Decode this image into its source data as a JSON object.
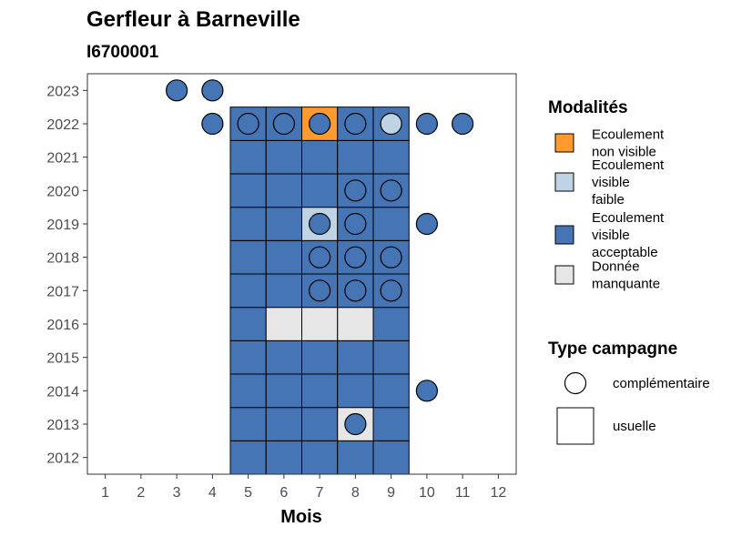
{
  "chart_data": {
    "type": "heatmap",
    "title": "Gerfleur à Barneville",
    "subtitle": "I6700001",
    "xlabel": "Mois",
    "ylabel": "",
    "x_ticks": [
      "1",
      "2",
      "3",
      "4",
      "5",
      "6",
      "7",
      "8",
      "9",
      "10",
      "11",
      "12"
    ],
    "y_ticks": [
      "2012",
      "2013",
      "2014",
      "2015",
      "2016",
      "2017",
      "2018",
      "2019",
      "2020",
      "2021",
      "2022",
      "2023"
    ],
    "xlim": [
      0.5,
      12.5
    ],
    "ylim": [
      2011.5,
      2023.5
    ],
    "grid": false,
    "legend_position": "right",
    "modalites": {
      "title": "Modalités",
      "items": [
        {
          "key": "nv",
          "label": [
            "Ecoulement",
            "non visible"
          ],
          "color": "#FE9A2E"
        },
        {
          "key": "vf",
          "label": [
            "Ecoulement",
            "visible",
            "faible"
          ],
          "color": "#BED3E3"
        },
        {
          "key": "va",
          "label": [
            "Ecoulement",
            "visible",
            "acceptable"
          ],
          "color": "#4575B4"
        },
        {
          "key": "dm",
          "label": [
            "Donnée",
            "manquante"
          ],
          "color": "#E6E6E6"
        }
      ]
    },
    "campagne": {
      "title": "Type campagne",
      "items": [
        {
          "key": "complementaire",
          "label": "complémentaire",
          "shape": "circle"
        },
        {
          "key": "usuelle",
          "label": "usuelle",
          "shape": "square"
        }
      ]
    },
    "points": [
      {
        "x": 5,
        "y": 2012,
        "type": "usuelle",
        "mod": "va"
      },
      {
        "x": 6,
        "y": 2012,
        "type": "usuelle",
        "mod": "va"
      },
      {
        "x": 7,
        "y": 2012,
        "type": "usuelle",
        "mod": "va"
      },
      {
        "x": 8,
        "y": 2012,
        "type": "usuelle",
        "mod": "va"
      },
      {
        "x": 9,
        "y": 2012,
        "type": "usuelle",
        "mod": "va"
      },
      {
        "x": 5,
        "y": 2013,
        "type": "usuelle",
        "mod": "va"
      },
      {
        "x": 6,
        "y": 2013,
        "type": "usuelle",
        "mod": "va"
      },
      {
        "x": 7,
        "y": 2013,
        "type": "usuelle",
        "mod": "va"
      },
      {
        "x": 8,
        "y": 2013,
        "type": "usuelle",
        "mod": "dm"
      },
      {
        "x": 9,
        "y": 2013,
        "type": "usuelle",
        "mod": "va"
      },
      {
        "x": 5,
        "y": 2014,
        "type": "usuelle",
        "mod": "va"
      },
      {
        "x": 6,
        "y": 2014,
        "type": "usuelle",
        "mod": "va"
      },
      {
        "x": 7,
        "y": 2014,
        "type": "usuelle",
        "mod": "va"
      },
      {
        "x": 8,
        "y": 2014,
        "type": "usuelle",
        "mod": "va"
      },
      {
        "x": 9,
        "y": 2014,
        "type": "usuelle",
        "mod": "va"
      },
      {
        "x": 5,
        "y": 2015,
        "type": "usuelle",
        "mod": "va"
      },
      {
        "x": 6,
        "y": 2015,
        "type": "usuelle",
        "mod": "va"
      },
      {
        "x": 7,
        "y": 2015,
        "type": "usuelle",
        "mod": "va"
      },
      {
        "x": 8,
        "y": 2015,
        "type": "usuelle",
        "mod": "va"
      },
      {
        "x": 9,
        "y": 2015,
        "type": "usuelle",
        "mod": "va"
      },
      {
        "x": 5,
        "y": 2016,
        "type": "usuelle",
        "mod": "va"
      },
      {
        "x": 6,
        "y": 2016,
        "type": "usuelle",
        "mod": "dm"
      },
      {
        "x": 7,
        "y": 2016,
        "type": "usuelle",
        "mod": "dm"
      },
      {
        "x": 8,
        "y": 2016,
        "type": "usuelle",
        "mod": "dm"
      },
      {
        "x": 9,
        "y": 2016,
        "type": "usuelle",
        "mod": "va"
      },
      {
        "x": 5,
        "y": 2017,
        "type": "usuelle",
        "mod": "va"
      },
      {
        "x": 6,
        "y": 2017,
        "type": "usuelle",
        "mod": "va"
      },
      {
        "x": 7,
        "y": 2017,
        "type": "usuelle",
        "mod": "va"
      },
      {
        "x": 8,
        "y": 2017,
        "type": "usuelle",
        "mod": "va"
      },
      {
        "x": 9,
        "y": 2017,
        "type": "usuelle",
        "mod": "va"
      },
      {
        "x": 5,
        "y": 2018,
        "type": "usuelle",
        "mod": "va"
      },
      {
        "x": 6,
        "y": 2018,
        "type": "usuelle",
        "mod": "va"
      },
      {
        "x": 7,
        "y": 2018,
        "type": "usuelle",
        "mod": "va"
      },
      {
        "x": 8,
        "y": 2018,
        "type": "usuelle",
        "mod": "va"
      },
      {
        "x": 9,
        "y": 2018,
        "type": "usuelle",
        "mod": "va"
      },
      {
        "x": 5,
        "y": 2019,
        "type": "usuelle",
        "mod": "va"
      },
      {
        "x": 6,
        "y": 2019,
        "type": "usuelle",
        "mod": "va"
      },
      {
        "x": 7,
        "y": 2019,
        "type": "usuelle",
        "mod": "vf"
      },
      {
        "x": 8,
        "y": 2019,
        "type": "usuelle",
        "mod": "va"
      },
      {
        "x": 9,
        "y": 2019,
        "type": "usuelle",
        "mod": "va"
      },
      {
        "x": 5,
        "y": 2020,
        "type": "usuelle",
        "mod": "va"
      },
      {
        "x": 6,
        "y": 2020,
        "type": "usuelle",
        "mod": "va"
      },
      {
        "x": 7,
        "y": 2020,
        "type": "usuelle",
        "mod": "va"
      },
      {
        "x": 8,
        "y": 2020,
        "type": "usuelle",
        "mod": "va"
      },
      {
        "x": 9,
        "y": 2020,
        "type": "usuelle",
        "mod": "va"
      },
      {
        "x": 5,
        "y": 2021,
        "type": "usuelle",
        "mod": "va"
      },
      {
        "x": 6,
        "y": 2021,
        "type": "usuelle",
        "mod": "va"
      },
      {
        "x": 7,
        "y": 2021,
        "type": "usuelle",
        "mod": "va"
      },
      {
        "x": 8,
        "y": 2021,
        "type": "usuelle",
        "mod": "va"
      },
      {
        "x": 9,
        "y": 2021,
        "type": "usuelle",
        "mod": "va"
      },
      {
        "x": 5,
        "y": 2022,
        "type": "usuelle",
        "mod": "va"
      },
      {
        "x": 6,
        "y": 2022,
        "type": "usuelle",
        "mod": "va"
      },
      {
        "x": 7,
        "y": 2022,
        "type": "usuelle",
        "mod": "nv"
      },
      {
        "x": 8,
        "y": 2022,
        "type": "usuelle",
        "mod": "va"
      },
      {
        "x": 9,
        "y": 2022,
        "type": "usuelle",
        "mod": "va"
      },
      {
        "x": 8,
        "y": 2013,
        "type": "complementaire",
        "mod": "va"
      },
      {
        "x": 10,
        "y": 2014,
        "type": "complementaire",
        "mod": "va"
      },
      {
        "x": 7,
        "y": 2017,
        "type": "complementaire",
        "mod": "va"
      },
      {
        "x": 8,
        "y": 2017,
        "type": "complementaire",
        "mod": "va"
      },
      {
        "x": 9,
        "y": 2017,
        "type": "complementaire",
        "mod": "va"
      },
      {
        "x": 7,
        "y": 2018,
        "type": "complementaire",
        "mod": "va"
      },
      {
        "x": 8,
        "y": 2018,
        "type": "complementaire",
        "mod": "va"
      },
      {
        "x": 9,
        "y": 2018,
        "type": "complementaire",
        "mod": "va"
      },
      {
        "x": 7,
        "y": 2019,
        "type": "complementaire",
        "mod": "va"
      },
      {
        "x": 8,
        "y": 2019,
        "type": "complementaire",
        "mod": "va"
      },
      {
        "x": 10,
        "y": 2019,
        "type": "complementaire",
        "mod": "va"
      },
      {
        "x": 8,
        "y": 2020,
        "type": "complementaire",
        "mod": "va"
      },
      {
        "x": 9,
        "y": 2020,
        "type": "complementaire",
        "mod": "va"
      },
      {
        "x": 4,
        "y": 2022,
        "type": "complementaire",
        "mod": "va"
      },
      {
        "x": 5,
        "y": 2022,
        "type": "complementaire",
        "mod": "va"
      },
      {
        "x": 6,
        "y": 2022,
        "type": "complementaire",
        "mod": "va"
      },
      {
        "x": 7,
        "y": 2022,
        "type": "complementaire",
        "mod": "va"
      },
      {
        "x": 8,
        "y": 2022,
        "type": "complementaire",
        "mod": "va"
      },
      {
        "x": 9,
        "y": 2022,
        "type": "complementaire",
        "mod": "vf"
      },
      {
        "x": 10,
        "y": 2022,
        "type": "complementaire",
        "mod": "va"
      },
      {
        "x": 11,
        "y": 2022,
        "type": "complementaire",
        "mod": "va"
      },
      {
        "x": 3,
        "y": 2023,
        "type": "complementaire",
        "mod": "va"
      },
      {
        "x": 4,
        "y": 2023,
        "type": "complementaire",
        "mod": "va"
      }
    ]
  }
}
